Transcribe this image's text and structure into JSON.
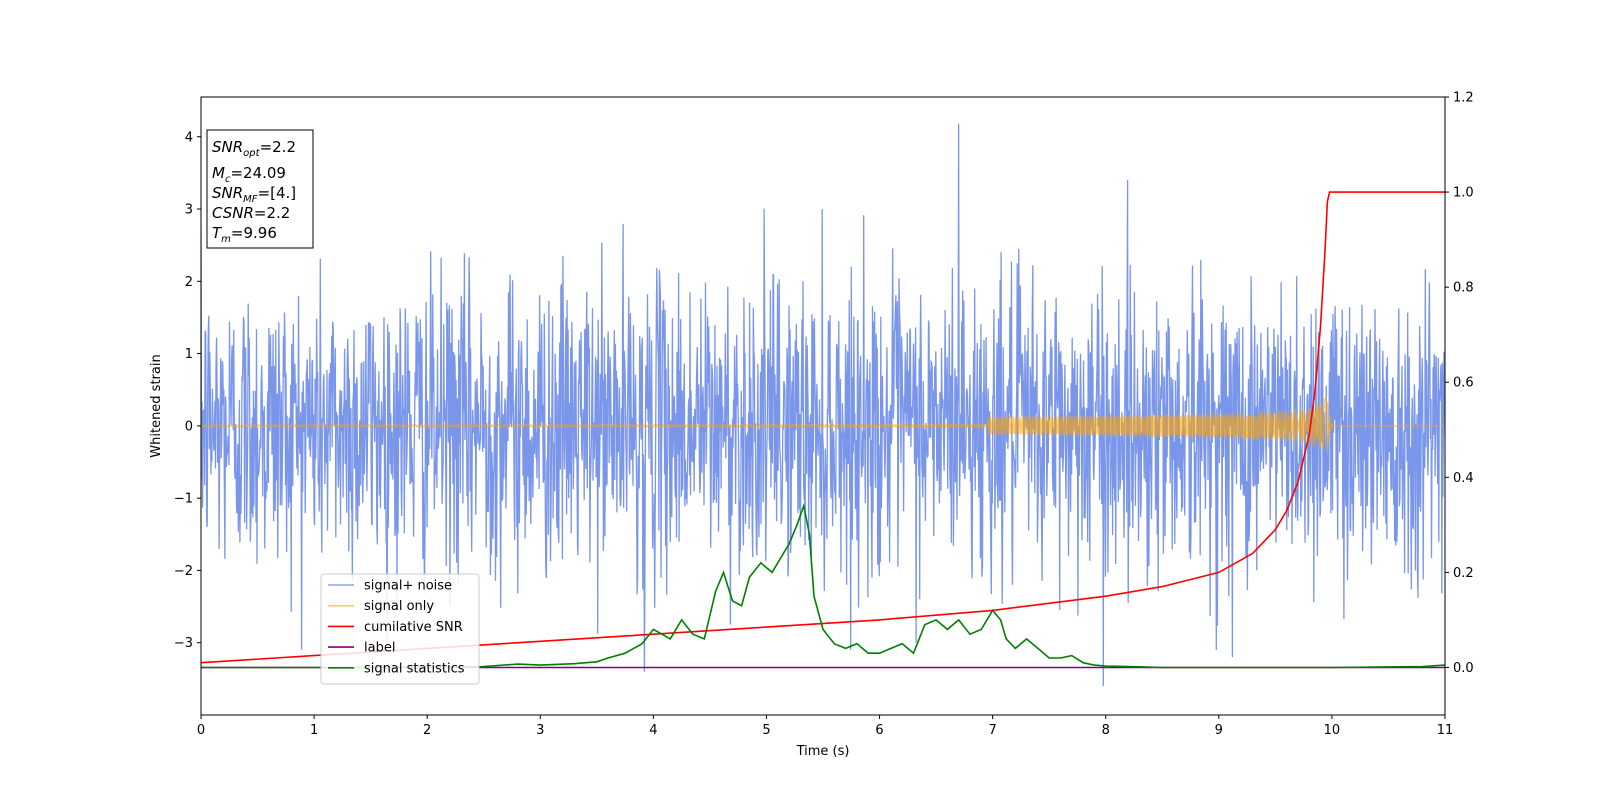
{
  "chart_data": {
    "type": "line",
    "xlabel": "Time (s)",
    "ylabel": "Whitened strain",
    "xlim": [
      0,
      11
    ],
    "ylim": [
      -4.0,
      4.55
    ],
    "y2lim": [
      -0.1,
      1.2
    ],
    "xticks": [
      "0",
      "1",
      "2",
      "3",
      "4",
      "5",
      "6",
      "7",
      "8",
      "9",
      "10",
      "11"
    ],
    "yticks": [
      "−3",
      "−2",
      "−1",
      "0",
      "1",
      "2",
      "3",
      "4"
    ],
    "y2ticks": [
      "0.0",
      "0.2",
      "0.4",
      "0.6",
      "0.8",
      "1.0",
      "1.2"
    ],
    "grid": false,
    "legend_placement": "lower-left",
    "annotation": {
      "snr_opt": {
        "base": "SNR",
        "sub": "opt",
        "value": "=2.2"
      },
      "mc": {
        "base": "M",
        "sub": "c",
        "value": "=24.09"
      },
      "snr_mf": {
        "base": "SNR",
        "sub": "MF",
        "value": "=[4.]"
      },
      "csnr": {
        "base": "CSNR",
        "value": "=2.2"
      },
      "tm": {
        "base": "T",
        "sub": "m",
        "value": "=9.96"
      }
    },
    "series": [
      {
        "name": "signal+ noise",
        "color": "#4169e1",
        "axis": "left",
        "kind": "noise",
        "sigma": 1.0,
        "x_range": [
          0,
          11
        ],
        "notable_extrema": [
          [
            6.7,
            4.18
          ],
          [
            7.98,
            -3.6
          ],
          [
            3.92,
            -3.4
          ],
          [
            9.12,
            -3.2
          ]
        ]
      },
      {
        "name": "signal only",
        "color": "#ffa500",
        "axis": "left",
        "kind": "chirp",
        "merger_time": 9.96,
        "peak_amplitude": 0.45,
        "x_range": [
          0,
          11
        ]
      },
      {
        "name": "cumilative SNR",
        "color": "#ff0000",
        "axis": "right",
        "x": [
          0,
          1,
          2,
          3,
          4,
          5,
          6,
          7,
          8,
          8.5,
          9,
          9.3,
          9.5,
          9.6,
          9.7,
          9.8,
          9.85,
          9.9,
          9.94,
          9.96,
          9.98,
          10,
          11
        ],
        "y": [
          0.01,
          0.025,
          0.04,
          0.055,
          0.07,
          0.085,
          0.1,
          0.12,
          0.15,
          0.17,
          0.2,
          0.24,
          0.29,
          0.33,
          0.39,
          0.49,
          0.58,
          0.72,
          0.88,
          0.98,
          1.0,
          1.0,
          1.0
        ]
      },
      {
        "name": "label",
        "color": "#800080",
        "axis": "right",
        "x": [
          0,
          11
        ],
        "y": [
          0,
          0
        ]
      },
      {
        "name": "signal statistics",
        "color": "#008000",
        "axis": "right",
        "x": [
          0,
          1,
          2,
          2.5,
          2.8,
          3.0,
          3.3,
          3.5,
          3.6,
          3.75,
          3.9,
          4.0,
          4.15,
          4.25,
          4.35,
          4.45,
          4.55,
          4.62,
          4.7,
          4.78,
          4.85,
          4.95,
          5.05,
          5.15,
          5.2,
          5.27,
          5.33,
          5.38,
          5.42,
          5.5,
          5.6,
          5.7,
          5.8,
          5.9,
          6.0,
          6.1,
          6.2,
          6.3,
          6.4,
          6.5,
          6.6,
          6.7,
          6.8,
          6.9,
          7.0,
          7.07,
          7.12,
          7.2,
          7.3,
          7.4,
          7.5,
          7.6,
          7.7,
          7.8,
          7.9,
          8.0,
          8.2,
          8.5,
          9.0,
          10.0,
          10.8,
          11.0
        ],
        "y": [
          0.0,
          0.0,
          0.0,
          0.002,
          0.007,
          0.005,
          0.008,
          0.012,
          0.02,
          0.03,
          0.05,
          0.08,
          0.06,
          0.1,
          0.07,
          0.06,
          0.16,
          0.2,
          0.14,
          0.13,
          0.19,
          0.22,
          0.2,
          0.24,
          0.26,
          0.3,
          0.34,
          0.28,
          0.15,
          0.08,
          0.05,
          0.04,
          0.05,
          0.03,
          0.03,
          0.04,
          0.05,
          0.03,
          0.09,
          0.1,
          0.08,
          0.1,
          0.07,
          0.08,
          0.12,
          0.1,
          0.06,
          0.04,
          0.06,
          0.04,
          0.02,
          0.02,
          0.025,
          0.01,
          0.005,
          0.003,
          0.002,
          0.0,
          0.0,
          0.0,
          0.002,
          0.005
        ]
      }
    ]
  }
}
